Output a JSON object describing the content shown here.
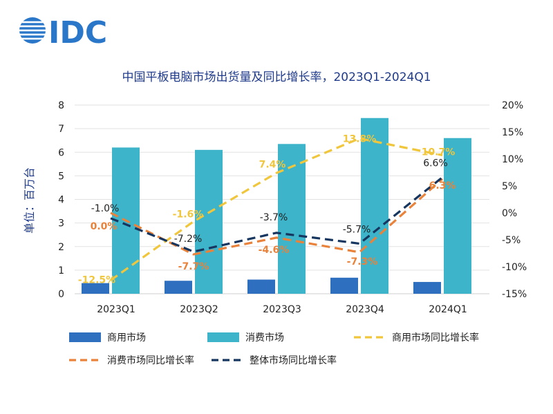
{
  "logo": {
    "text": "IDC",
    "color": "#2a77c9"
  },
  "colors": {
    "commercial_bar": "#2f6fc0",
    "consumer_bar": "#3db4c9",
    "commercial_line": "#f0c63d",
    "consumer_line": "#e9823a",
    "overall_line": "#17365f",
    "title": "#1f3a8a"
  },
  "chart_data": {
    "type": "bar",
    "title": "中国平板电脑市场出货量及同比增长率，2023Q1-2024Q1",
    "ylabel": "单位：百万台",
    "categories": [
      "2023Q1",
      "2023Q2",
      "2023Q3",
      "2023Q4",
      "2024Q1"
    ],
    "ylim": [
      0,
      8
    ],
    "y_ticks": [
      0,
      1,
      2,
      3,
      4,
      5,
      6,
      7,
      8
    ],
    "y2lim": [
      -15,
      20
    ],
    "y2_ticks": [
      "-15%",
      "-10%",
      "-5%",
      "0%",
      "5%",
      "10%",
      "15%",
      "20%"
    ],
    "y2_tick_values": [
      -15,
      -10,
      -5,
      0,
      5,
      10,
      15,
      20
    ],
    "grid": true,
    "legend_position": "bottom",
    "series": [
      {
        "name": "商用市场",
        "kind": "bar",
        "values": [
          0.45,
          0.55,
          0.6,
          0.68,
          0.5
        ]
      },
      {
        "name": "消费市场",
        "kind": "bar",
        "values": [
          6.2,
          6.1,
          6.35,
          7.45,
          6.6
        ]
      },
      {
        "name": "商用市场同比增长率",
        "kind": "line",
        "values": [
          -12.5,
          -1.6,
          7.4,
          13.8,
          10.7
        ],
        "labels": [
          "-12.5%",
          "-1.6%",
          "7.4%",
          "13.8%",
          "10.7%"
        ]
      },
      {
        "name": "消费市场同比增长率",
        "kind": "line",
        "values": [
          0.0,
          -7.7,
          -4.6,
          -7.3,
          6.3
        ],
        "labels": [
          "0.0%",
          "-7.7%",
          "-4.6%",
          "-7.3%",
          "6.3%"
        ]
      },
      {
        "name": "整体市场同比增长率",
        "kind": "line",
        "values": [
          -1.0,
          -7.2,
          -3.7,
          -5.7,
          6.6
        ],
        "labels": [
          "-1.0%",
          "-7.2%",
          "-3.7%",
          "-5.7%",
          "6.6%"
        ]
      }
    ]
  }
}
